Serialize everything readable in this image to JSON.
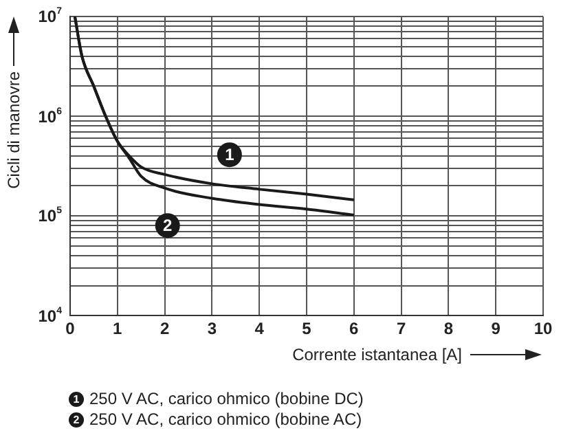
{
  "chart_data": {
    "type": "line",
    "xlabel": "Corrente istantanea [A]",
    "ylabel": "Cicli di manovre",
    "series": [
      {
        "name": "250 V AC, carico ohmico (bobine DC)",
        "color": "#1a1a1a",
        "x": [
          0.1,
          0.25,
          0.5,
          0.75,
          1,
          1.25,
          1.5,
          2,
          3,
          4,
          5,
          6
        ],
        "values": [
          10000000,
          4000000,
          2000000,
          1000000,
          560000,
          400000,
          310000,
          260000,
          210000,
          185000,
          165000,
          145000
        ]
      },
      {
        "name": "250 V AC, carico ohmico (bobine AC)",
        "color": "#1a1a1a",
        "x": [
          0.1,
          0.25,
          0.5,
          0.75,
          1,
          1.25,
          1.5,
          2,
          3,
          4,
          5,
          6
        ],
        "values": [
          10000000,
          4000000,
          2000000,
          1000000,
          560000,
          380000,
          250000,
          190000,
          150000,
          130000,
          117000,
          102000
        ]
      }
    ],
    "annotations": [
      {
        "text": "1",
        "x": 3.37,
        "y": 410000
      },
      {
        "text": "2",
        "x": 2.06,
        "y": 80000
      }
    ],
    "xlim": [
      0,
      10
    ],
    "xticks": [
      0,
      1,
      2,
      3,
      4,
      5,
      6,
      7,
      8,
      9,
      10
    ],
    "ylim": [
      10000,
      10000000
    ],
    "yticks": [
      {
        "value": 10000,
        "label": "10$^{4}$"
      },
      {
        "value": 20000,
        "label": null
      },
      {
        "value": 30000,
        "label": null
      },
      {
        "value": 40000,
        "label": null
      },
      {
        "value": 50000,
        "label": null
      },
      {
        "value": 60000,
        "label": null
      },
      {
        "value": 70000,
        "label": null
      },
      {
        "value": 80000,
        "label": null
      },
      {
        "value": 90000,
        "label": null
      },
      {
        "value": 100000,
        "label": "10$^{5}$"
      },
      {
        "value": 200000,
        "label": null
      },
      {
        "value": 300000,
        "label": null
      },
      {
        "value": 400000,
        "label": null
      },
      {
        "value": 500000,
        "label": null
      },
      {
        "value": 600000,
        "label": null
      },
      {
        "value": 700000,
        "label": null
      },
      {
        "value": 800000,
        "label": null
      },
      {
        "value": 900000,
        "label": null
      },
      {
        "value": 1000000,
        "label": "10$^{6}$"
      },
      {
        "value": 2000000,
        "label": null
      },
      {
        "value": 3000000,
        "label": null
      },
      {
        "value": 4000000,
        "label": null
      },
      {
        "value": 5000000,
        "label": null
      },
      {
        "value": 6000000,
        "label": null
      },
      {
        "value": 7000000,
        "label": null
      },
      {
        "value": 8000000,
        "label": null
      },
      {
        "value": 9000000,
        "label": null
      },
      {
        "value": 10000000,
        "label": "10$^{7}$"
      }
    ],
    "log": "y",
    "grid": true,
    "legend": "bottom",
    "marker": "none",
    "line_style": "solid"
  }
}
